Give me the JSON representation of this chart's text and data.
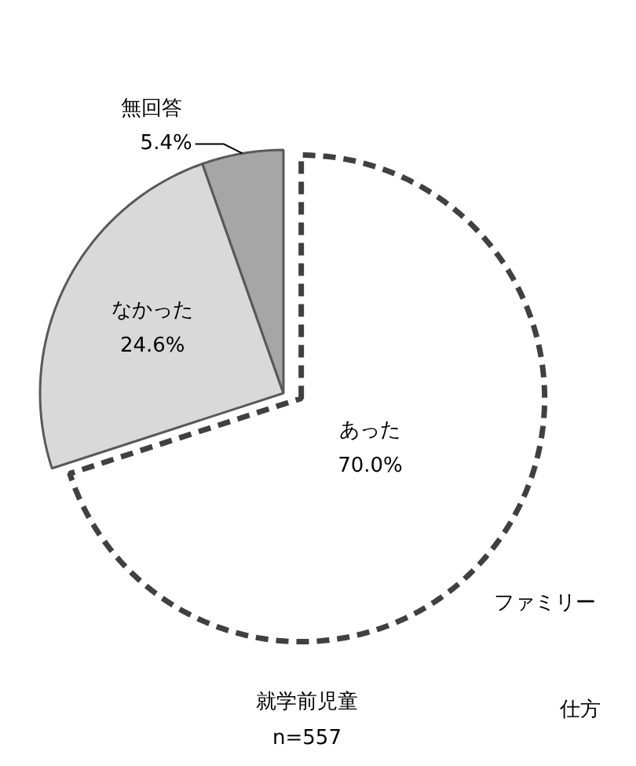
{
  "chart_data": {
    "type": "pie",
    "title": "就学前児童",
    "subtitle": "n=557",
    "categories": [
      "あった",
      "なかった",
      "無回答"
    ],
    "values": [
      70.0,
      24.6,
      5.4
    ],
    "value_labels": [
      "70.0%",
      "24.6%",
      "5.4%"
    ],
    "colors": [
      "#ffffff",
      "#d9d9d9",
      "#a6a6a6"
    ],
    "annotations": [
      "ファミリー",
      "仕方"
    ]
  }
}
